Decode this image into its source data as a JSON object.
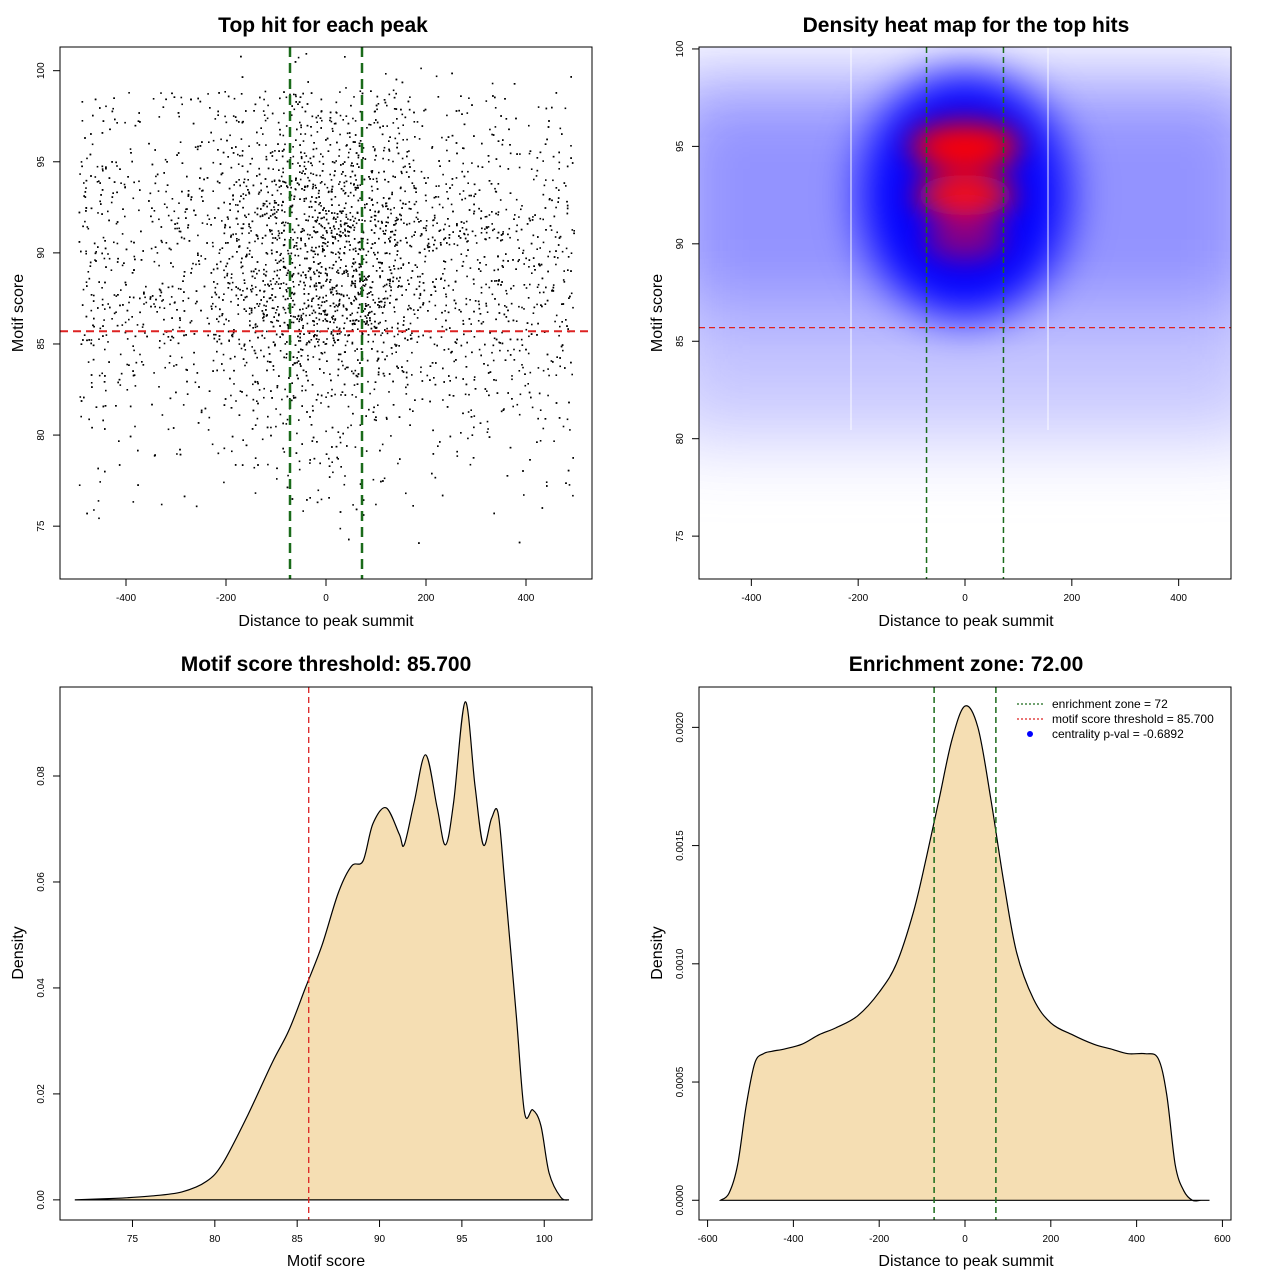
{
  "chart_data": [
    {
      "type": "scatter",
      "title": "Top hit for each peak",
      "xlabel": "Distance to peak summit",
      "ylabel": "Motif score",
      "xlim": [
        -532,
        532
      ],
      "ylim": [
        72.1,
        101.3
      ],
      "xticks": [
        "-400",
        "-200",
        "0",
        "200",
        "400"
      ],
      "yticks": [
        "75",
        "80",
        "85",
        "90",
        "95",
        "100"
      ],
      "threshold_y": 85.7,
      "zone_x": [
        -72,
        72
      ],
      "point_color": "#000000",
      "threshold_color": "#dd2222",
      "zone_color": "#1a6b1a"
    },
    {
      "type": "heatmap",
      "title": "Density heat map for the top hits",
      "xlabel": "Distance to peak summit",
      "ylabel": "Motif score",
      "xlim": [
        -498,
        498
      ],
      "ylim": [
        72.8,
        100.1
      ],
      "xticks": [
        "-400",
        "-200",
        "0",
        "200",
        "400"
      ],
      "yticks": [
        "75",
        "80",
        "85",
        "90",
        "95",
        "100"
      ],
      "threshold_y": 85.7,
      "zone_x": [
        -72,
        72
      ],
      "low_color": "#ffffff",
      "mid_color": "#0000ff",
      "high_color": "#ff0000"
    },
    {
      "type": "area",
      "title": "Motif score threshold: 85.700",
      "xlabel": "Motif score",
      "ylabel": "Density",
      "xlim": [
        70.6,
        102.9
      ],
      "ylim": [
        -0.0038,
        0.0968
      ],
      "xticks": [
        "75",
        "80",
        "85",
        "90",
        "95",
        "100"
      ],
      "yticks": [
        "0.00",
        "0.02",
        "0.04",
        "0.06",
        "0.08"
      ],
      "threshold_x": 85.7,
      "fill_color": "#f5deb3",
      "threshold_color": "#dd2222",
      "x": [
        71.5,
        74,
        76,
        78,
        79.5,
        80.5,
        82,
        83.5,
        84.5,
        85.5,
        86.5,
        87.5,
        88.3,
        89,
        89.6,
        90.4,
        91.2,
        91.5,
        92.1,
        92.8,
        93.5,
        94,
        94.5,
        95.2,
        95.8,
        96.3,
        96.8,
        97.2,
        97.6,
        98.3,
        98.8,
        99.3,
        99.8,
        100.3,
        101,
        101.5
      ],
      "values": [
        0,
        0.0003,
        0.0007,
        0.0015,
        0.0035,
        0.007,
        0.016,
        0.026,
        0.032,
        0.04,
        0.048,
        0.058,
        0.063,
        0.064,
        0.071,
        0.074,
        0.069,
        0.067,
        0.075,
        0.084,
        0.074,
        0.067,
        0.075,
        0.094,
        0.078,
        0.067,
        0.072,
        0.073,
        0.06,
        0.035,
        0.0165,
        0.017,
        0.014,
        0.005,
        0.0005,
        0
      ]
    },
    {
      "type": "area",
      "title": "Enrichment zone: 72.00",
      "xlabel": "Distance to peak summit",
      "ylabel": "Density",
      "xlim": [
        -620,
        620
      ],
      "ylim": [
        -8.35e-05,
        0.0021707
      ],
      "xticks": [
        "-600",
        "-400",
        "-200",
        "0",
        "200",
        "400",
        "600"
      ],
      "yticks": [
        "0.0000",
        "0.0005",
        "0.0010",
        "0.0015",
        "0.0020"
      ],
      "zone_x": [
        -72,
        72
      ],
      "fill_color": "#f5deb3",
      "zone_color": "#1a6b1a",
      "x": [
        -570,
        -550,
        -530,
        -510,
        -490,
        -470,
        -450,
        -420,
        -380,
        -340,
        -300,
        -250,
        -200,
        -160,
        -120,
        -90,
        -60,
        -30,
        0,
        30,
        60,
        90,
        120,
        160,
        200,
        250,
        300,
        340,
        380,
        420,
        450,
        470,
        490,
        510,
        530,
        550,
        570
      ],
      "values": [
        0,
        3e-05,
        0.00015,
        0.0004,
        0.00058,
        0.00062,
        0.00063,
        0.00064,
        0.00066,
        0.0007,
        0.00073,
        0.00078,
        0.00088,
        0.001,
        0.00122,
        0.00145,
        0.0017,
        0.00195,
        0.00209,
        0.002,
        0.0017,
        0.00135,
        0.00105,
        0.00085,
        0.00075,
        0.0007,
        0.00066,
        0.00064,
        0.00062,
        0.00062,
        0.0006,
        0.00045,
        0.00015,
        4e-05,
        0,
        0,
        0
      ],
      "legend": [
        {
          "label": "enrichment zone = 72",
          "color": "#1a6b1a",
          "kind": "dotted-line"
        },
        {
          "label": "motif score threshold = 85.700",
          "color": "#dd2222",
          "kind": "dotted-line"
        },
        {
          "label": "centrality p-val = -0.6892",
          "color": "#0000ff",
          "kind": "point"
        }
      ]
    }
  ]
}
